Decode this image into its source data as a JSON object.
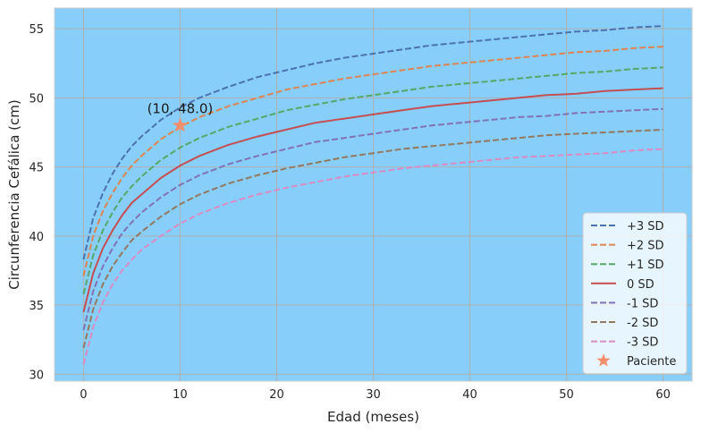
{
  "chart_data": {
    "type": "line",
    "title": "",
    "xlabel": "Edad (meses)",
    "ylabel": "Circunferencia Cefálica (cm)",
    "xlim": [
      -3,
      63
    ],
    "ylim": [
      29.5,
      56.5
    ],
    "xticks": [
      0,
      10,
      20,
      30,
      40,
      50,
      60
    ],
    "yticks": [
      30,
      35,
      40,
      45,
      50,
      55
    ],
    "grid": true,
    "legend_position": "lower-right",
    "background_color": "#87cefa",
    "grid_color": "#b0b0b0",
    "x": [
      0,
      1,
      2,
      3,
      4,
      5,
      6,
      8,
      10,
      12,
      15,
      18,
      21,
      24,
      27,
      30,
      33,
      36,
      39,
      42,
      45,
      48,
      51,
      54,
      57,
      60
    ],
    "series": [
      {
        "name": "+3 SD",
        "color": "#4c72b0",
        "dash": "dashed",
        "values": [
          38.3,
          41.3,
          43.1,
          44.5,
          45.6,
          46.5,
          47.2,
          48.4,
          49.3,
          50.0,
          50.8,
          51.5,
          52.0,
          52.5,
          52.9,
          53.2,
          53.5,
          53.8,
          54.0,
          54.2,
          54.4,
          54.6,
          54.8,
          54.9,
          55.1,
          55.2
        ]
      },
      {
        "name": "+2 SD",
        "color": "#dd8452",
        "dash": "dashed",
        "values": [
          37.1,
          40.0,
          41.8,
          43.1,
          44.2,
          45.1,
          45.8,
          47.0,
          47.9,
          48.6,
          49.4,
          50.0,
          50.6,
          51.0,
          51.4,
          51.7,
          52.0,
          52.3,
          52.5,
          52.7,
          52.9,
          53.1,
          53.3,
          53.4,
          53.6,
          53.7
        ]
      },
      {
        "name": "+1 SD",
        "color": "#55a868",
        "dash": "dashed",
        "values": [
          35.8,
          38.6,
          40.4,
          41.7,
          42.8,
          43.6,
          44.3,
          45.5,
          46.4,
          47.1,
          47.9,
          48.5,
          49.1,
          49.5,
          49.9,
          50.2,
          50.5,
          50.8,
          51.0,
          51.2,
          51.4,
          51.6,
          51.8,
          51.9,
          52.1,
          52.2
        ]
      },
      {
        "name": "0 SD",
        "color": "#c44e52",
        "dash": "solid",
        "values": [
          34.5,
          37.3,
          39.1,
          40.4,
          41.5,
          42.4,
          43.0,
          44.2,
          45.1,
          45.8,
          46.6,
          47.2,
          47.7,
          48.2,
          48.5,
          48.8,
          49.1,
          49.4,
          49.6,
          49.8,
          50.0,
          50.2,
          50.3,
          50.5,
          50.6,
          50.7
        ]
      },
      {
        "name": "-1 SD",
        "color": "#8172b3",
        "dash": "dashed",
        "values": [
          33.2,
          36.0,
          37.8,
          39.1,
          40.2,
          41.0,
          41.7,
          42.8,
          43.7,
          44.4,
          45.2,
          45.8,
          46.3,
          46.8,
          47.1,
          47.4,
          47.7,
          48.0,
          48.2,
          48.4,
          48.6,
          48.7,
          48.9,
          49.0,
          49.1,
          49.2
        ]
      },
      {
        "name": "-2 SD",
        "color": "#937860",
        "dash": "dashed",
        "values": [
          31.9,
          34.7,
          36.5,
          37.8,
          38.8,
          39.7,
          40.3,
          41.4,
          42.3,
          43.0,
          43.8,
          44.4,
          44.9,
          45.3,
          45.7,
          46.0,
          46.3,
          46.5,
          46.7,
          46.9,
          47.1,
          47.3,
          47.4,
          47.5,
          47.6,
          47.7
        ]
      },
      {
        "name": "-3 SD",
        "color": "#da8bc3",
        "dash": "dashed",
        "values": [
          30.7,
          33.4,
          35.2,
          36.5,
          37.5,
          38.3,
          39.0,
          40.0,
          40.9,
          41.6,
          42.4,
          43.0,
          43.5,
          43.9,
          44.3,
          44.6,
          44.9,
          45.1,
          45.3,
          45.5,
          45.7,
          45.8,
          45.9,
          46.0,
          46.2,
          46.3
        ]
      }
    ],
    "marker": {
      "name": "Paciente",
      "x": 10,
      "y": 48.0,
      "color": "#f28e6b",
      "shape": "star"
    },
    "annotations": [
      {
        "text": "(10, 48.0)",
        "x": 10,
        "y": 48.0
      }
    ]
  }
}
